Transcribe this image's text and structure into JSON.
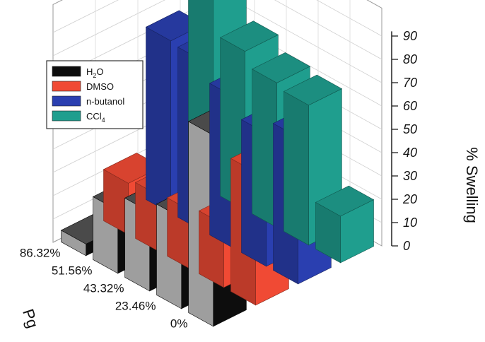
{
  "chart_data": {
    "type": "bar",
    "style": "3d-bar",
    "zlabel": "% Swelling",
    "xlabel": "Pg",
    "zlim": [
      0,
      90
    ],
    "zticks": [
      "0",
      "10",
      "20",
      "30",
      "40",
      "50",
      "60",
      "70",
      "80",
      "90"
    ],
    "categories": [
      "0%",
      "23.46%",
      "43.32%",
      "51.56%",
      "86.32%"
    ],
    "series": [
      {
        "name": "H2O",
        "values": [
          82,
          39,
          34,
          27,
          5
        ]
      },
      {
        "name": "DMSO",
        "values": [
          57,
          27,
          25,
          24,
          22
        ]
      },
      {
        "name": "n-butanol",
        "values": [
          63,
          57,
          65,
          73,
          74
        ]
      },
      {
        "name": "CCl4",
        "values": [
          20,
          60,
          62,
          68,
          96
        ]
      }
    ],
    "legend_placement": "top-left",
    "grid": true
  },
  "legend": [
    {
      "label": "H",
      "sub": "2",
      "tail": "O",
      "color": "#0d0d0d"
    },
    {
      "label": "DMSO",
      "sub": "",
      "tail": "",
      "color": "#f04a34"
    },
    {
      "label": "n-butanol",
      "sub": "",
      "tail": "",
      "color": "#2a3fb0"
    },
    {
      "label": "CCl",
      "sub": "4",
      "tail": "",
      "color": "#1f9e8e"
    }
  ],
  "colors": {
    "H2O": "#0d0d0d",
    "DMSO": "#f04a34",
    "n-butanol": "#2a3fb0",
    "CCl4": "#1f9e8e"
  }
}
